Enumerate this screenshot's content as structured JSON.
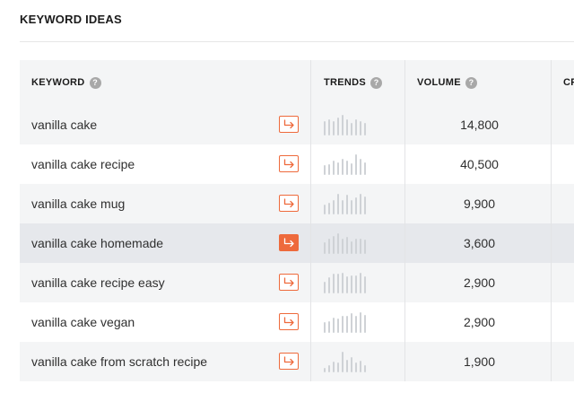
{
  "section": {
    "title": "KEYWORD IDEAS"
  },
  "columns": {
    "keyword": "KEYWORD",
    "trend": "TRENDS",
    "volume": "VOLUME",
    "cpc": "CF"
  },
  "help_glyph": "?",
  "colors": {
    "accent": "#ee6a3c",
    "trend_bar": "#cfd2d6",
    "row_alt": "#f4f5f6",
    "row_highlight": "#e6e8ec"
  },
  "rows": [
    {
      "keyword": "vanilla cake",
      "volume": "14,800",
      "trend": [
        0.65,
        0.75,
        0.65,
        0.85,
        0.95,
        0.75,
        0.6,
        0.75,
        0.65,
        0.6
      ]
    },
    {
      "keyword": "vanilla cake recipe",
      "volume": "40,500",
      "trend": [
        0.45,
        0.5,
        0.65,
        0.6,
        0.75,
        0.65,
        0.55,
        0.95,
        0.75,
        0.6
      ]
    },
    {
      "keyword": "vanilla cake mug",
      "volume": "9,900",
      "trend": [
        0.45,
        0.55,
        0.65,
        0.95,
        0.65,
        0.9,
        0.65,
        0.8,
        0.95,
        0.85
      ]
    },
    {
      "keyword": "vanilla cake homemade",
      "volume": "3,600",
      "highlight": true,
      "trend": [
        0.55,
        0.7,
        0.85,
        0.95,
        0.7,
        0.8,
        0.6,
        0.7,
        0.7,
        0.65
      ]
    },
    {
      "keyword": "vanilla cake recipe easy",
      "volume": "2,900",
      "trend": [
        0.55,
        0.75,
        0.9,
        0.9,
        0.95,
        0.8,
        0.85,
        0.85,
        0.95,
        0.8
      ]
    },
    {
      "keyword": "vanilla cake vegan",
      "volume": "2,900",
      "trend": [
        0.5,
        0.55,
        0.7,
        0.65,
        0.8,
        0.8,
        0.9,
        0.8,
        0.95,
        0.85
      ]
    },
    {
      "keyword": "vanilla cake from scratch recipe",
      "volume": "1,900",
      "trend": [
        0.2,
        0.35,
        0.5,
        0.45,
        0.95,
        0.6,
        0.7,
        0.45,
        0.55,
        0.35
      ]
    }
  ]
}
